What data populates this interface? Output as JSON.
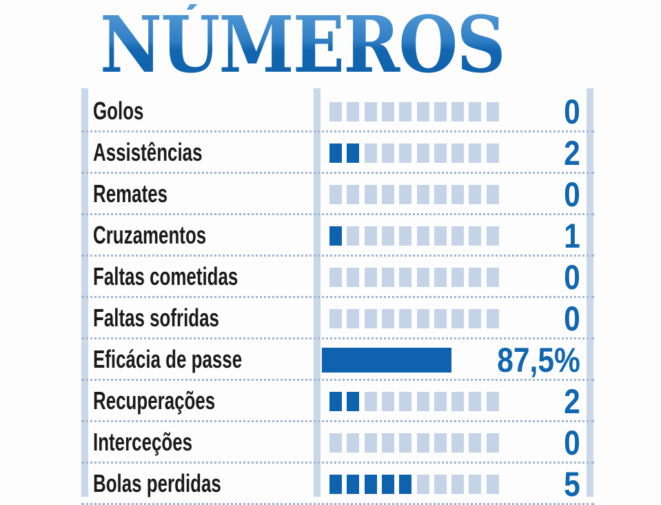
{
  "title": "NÚMEROS",
  "colors": {
    "filled": "#0f62ad",
    "empty": "#c5d3e6",
    "title": "#1266b0",
    "value": "#1166b0"
  },
  "chart_data": {
    "type": "table",
    "title": "NÚMEROS",
    "scale_max_squares": 10,
    "rows": [
      {
        "label": "Golos",
        "value": 0,
        "display": "0"
      },
      {
        "label": "Assistências",
        "value": 2,
        "display": "2"
      },
      {
        "label": "Remates",
        "value": 0,
        "display": "0"
      },
      {
        "label": "Cruzamentos",
        "value": 1,
        "display": "1"
      },
      {
        "label": "Faltas cometidas",
        "value": 0,
        "display": "0"
      },
      {
        "label": "Faltas sofridas",
        "value": 0,
        "display": "0"
      },
      {
        "label": "Eficácia de passe",
        "value": 87.5,
        "display": "87,5%",
        "percent": true
      },
      {
        "label": "Recuperações",
        "value": 2,
        "display": "2"
      },
      {
        "label": "Interceções",
        "value": 0,
        "display": "0"
      },
      {
        "label": "Bolas perdidas",
        "value": 5,
        "display": "5"
      }
    ]
  }
}
